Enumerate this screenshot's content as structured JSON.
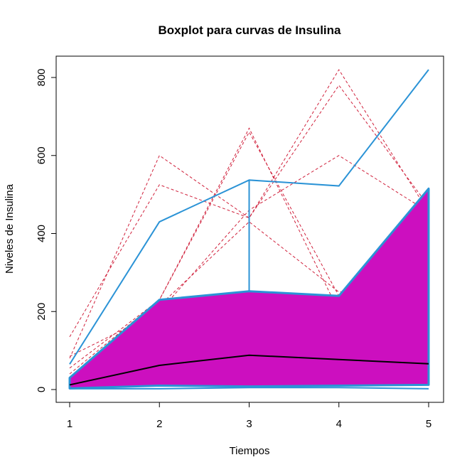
{
  "chart_data": {
    "type": "line",
    "title": "Boxplot para curvas de Insulina",
    "xlabel": "Tiempos",
    "ylabel": "Niveles de Insulina",
    "x": [
      1,
      2,
      3,
      4,
      5
    ],
    "xlim": [
      1,
      5
    ],
    "ylim": [
      0,
      820
    ],
    "x_ticks": [
      "1",
      "2",
      "3",
      "4",
      "5"
    ],
    "y_ticks": [
      "0",
      "200",
      "400",
      "600",
      "800"
    ],
    "central_region": {
      "lower": [
        3,
        10,
        8,
        10,
        12
      ],
      "upper": [
        30,
        230,
        252,
        240,
        515
      ],
      "fill_color": "#cc0fbf",
      "border_color": "#2b93d6"
    },
    "median": {
      "values": [
        12,
        62,
        88,
        77,
        66
      ],
      "color": "#000000"
    },
    "envelope": {
      "upper": [
        65,
        430,
        537,
        522,
        820
      ],
      "lower": [
        2,
        2,
        5,
        5,
        2
      ],
      "color": "#2b93d6"
    },
    "outliers": {
      "color": "#d0213c",
      "style": "dashed",
      "series": [
        {
          "values": [
            80,
            600,
            440,
            820,
            455
          ]
        },
        {
          "values": [
            135,
            525,
            440,
            780,
            470
          ]
        },
        {
          "values": [
            40,
            230,
            670,
            200,
            290
          ]
        },
        {
          "values": [
            55,
            230,
            660,
            240,
            280
          ]
        },
        {
          "values": [
            85,
            200,
            460,
            600,
            455
          ]
        },
        {
          "values": [
            30,
            215,
            430,
            250,
            280
          ]
        }
      ]
    }
  }
}
